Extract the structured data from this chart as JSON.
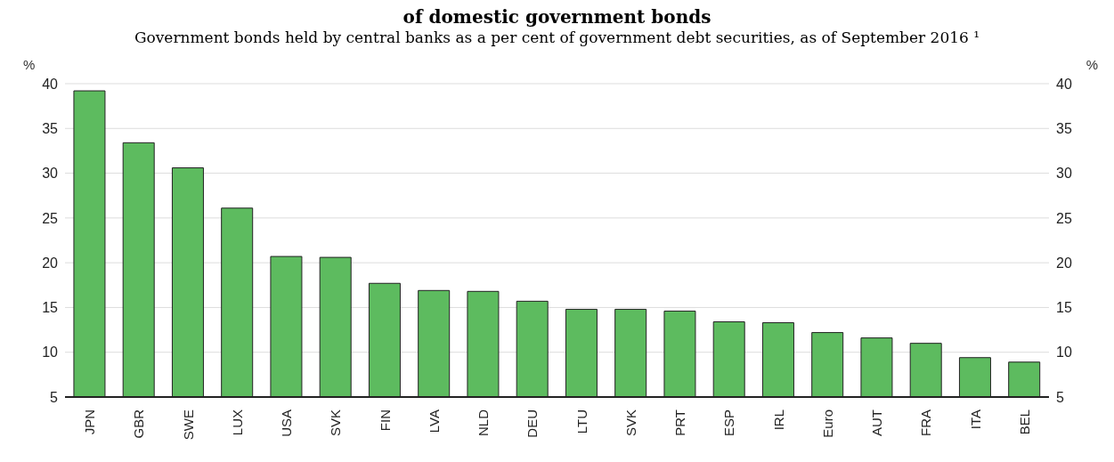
{
  "chart_data": {
    "type": "bar",
    "title": "of domestic government bonds",
    "subtitle": "Government bonds held by central banks as a per cent of government debt securities, as of September 2016 ¹",
    "ylabel": "%",
    "y2label": "%",
    "categories": [
      "JPN",
      "GBR",
      "SWE",
      "LUX",
      "USA",
      "SVK",
      "FIN",
      "LVA",
      "NLD",
      "DEU",
      "LTU",
      "SVK",
      "PRT",
      "ESP",
      "IRL",
      "Euro",
      "AUT",
      "FRA",
      "ITA",
      "BEL"
    ],
    "values": [
      39.2,
      33.4,
      30.6,
      26.1,
      20.7,
      20.6,
      17.7,
      16.9,
      16.8,
      15.7,
      14.8,
      14.8,
      14.6,
      13.4,
      13.3,
      12.2,
      11.6,
      11.0,
      9.4,
      8.9
    ],
    "color": "#5dbb5f",
    "ylim": [
      5,
      40
    ],
    "yticks": [
      5,
      10,
      15,
      20,
      25,
      30,
      35,
      40
    ],
    "y2lim": [
      5,
      40
    ],
    "y2ticks": [
      5,
      10,
      15,
      20,
      25,
      30,
      35,
      40
    ],
    "grid": "y"
  }
}
